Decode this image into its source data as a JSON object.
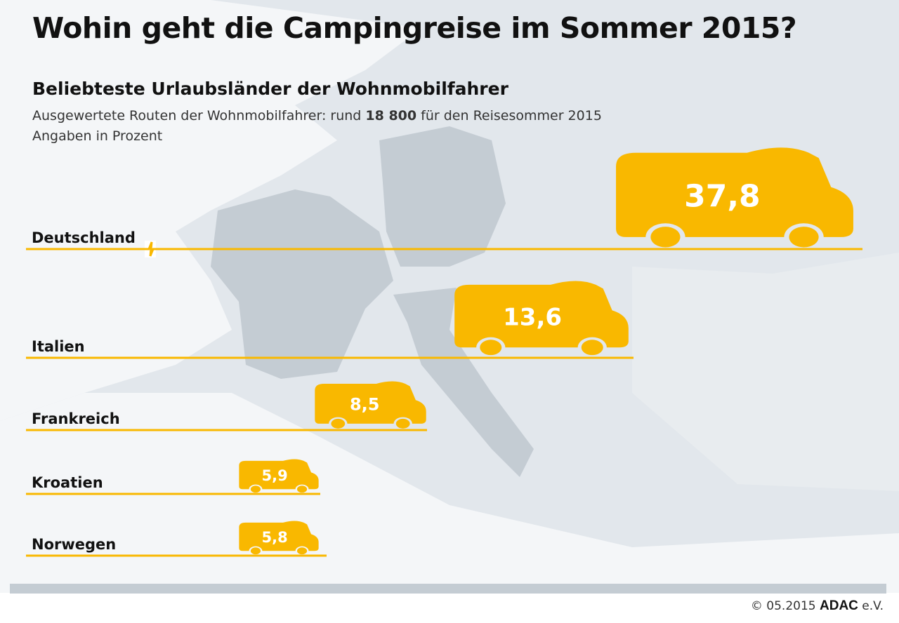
{
  "title": "Wohin geht die Campingreise im Sommer 2015?",
  "subtitle": "Beliebteste Urlaubsländer der Wohnmobilfahrer",
  "note_prefix": "Ausgewertete Routen der Wohnmobilfahrer: rund ",
  "note_bold": "18 800",
  "note_suffix": " für den Reisesommer 2015",
  "note2": "Angaben in Prozent",
  "credit": {
    "copyright": "© 05.2015 ",
    "brand": "ADAC",
    "suffix": " e.V."
  },
  "colors": {
    "accent": "#f9b800",
    "map_light": "#e4e8ec",
    "map_dark": "#c4ccd3"
  },
  "chart_data": {
    "type": "bar",
    "orientation": "horizontal",
    "title": "Beliebteste Urlaubsländer der Wohnmobilfahrer",
    "unit": "Prozent",
    "categories": [
      "Deutschland",
      "Italien",
      "Frankreich",
      "Kroatien",
      "Norwegen"
    ],
    "values": [
      37.8,
      13.6,
      8.5,
      5.9,
      5.8
    ],
    "value_labels": [
      "37,8",
      "13,6",
      "8,5",
      "5,9",
      "5,8"
    ],
    "axis_break": "Deutschland",
    "mark": "camper-icon"
  }
}
